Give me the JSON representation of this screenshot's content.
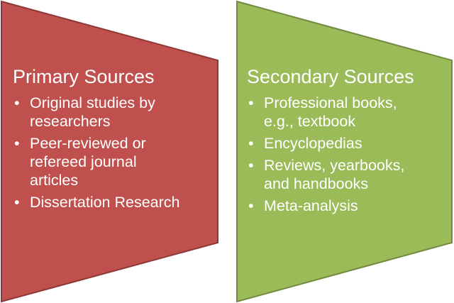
{
  "colors": {
    "primary_fill": "#c0504d",
    "primary_stroke": "#8c3836",
    "secondary_fill": "#9bbb59",
    "secondary_stroke": "#71893f",
    "text": "#ffffff"
  },
  "primary": {
    "title": "Primary Sources",
    "items": [
      {
        "lines": [
          "Original studies by",
          "researchers"
        ]
      },
      {
        "lines": [
          "Peer-reviewed or",
          "refereed journal",
          "articles"
        ]
      },
      {
        "lines": [
          "Dissertation Research"
        ]
      }
    ]
  },
  "secondary": {
    "title": "Secondary Sources",
    "items": [
      {
        "lines": [
          "Professional books,",
          "e.g., textbook"
        ]
      },
      {
        "lines": [
          "Encyclopedias"
        ]
      },
      {
        "lines": [
          "Reviews, yearbooks,",
          "and handbooks"
        ]
      },
      {
        "lines": [
          "Meta-analysis"
        ]
      }
    ]
  },
  "bullet_char": "•"
}
